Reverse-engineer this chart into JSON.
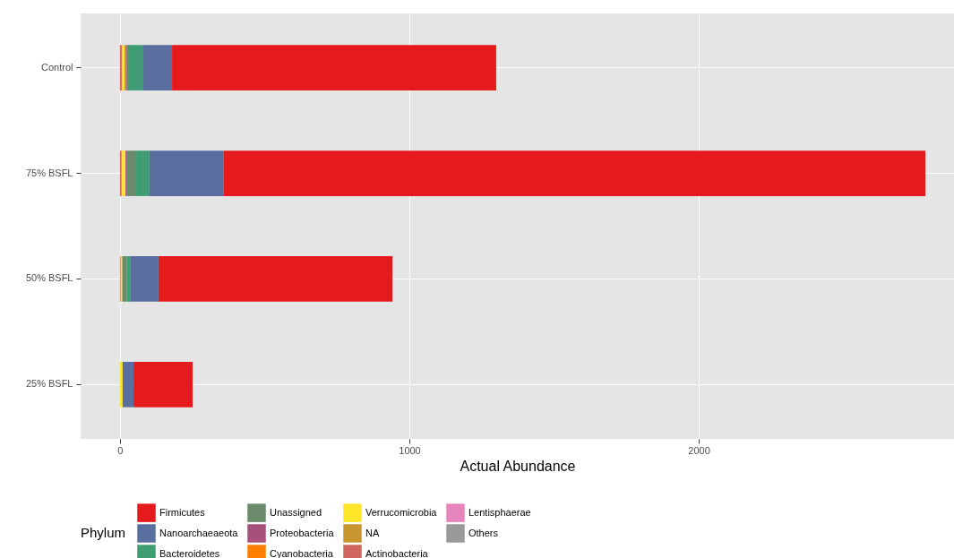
{
  "chart_data": {
    "type": "bar",
    "orientation": "horizontal",
    "stacked": true,
    "xlabel": "Actual Abundance",
    "legend_title": "Phylum",
    "legend": "bottom",
    "grid": true,
    "categories": [
      "Control",
      "75% BSFL",
      "50% BSFL",
      "25% BSFL"
    ],
    "xlim": [
      -136,
      2882
    ],
    "xticks": [
      0,
      1000,
      2000
    ],
    "series": [
      {
        "name": "Others",
        "color": "#999999",
        "values": [
          0,
          0,
          0,
          0
        ]
      },
      {
        "name": "Lentisphaerae",
        "color": "#e585bb",
        "values": [
          0,
          0,
          0,
          0
        ]
      },
      {
        "name": "Actinobacteria",
        "color": "#d0665e",
        "values": [
          6,
          4,
          2,
          0
        ]
      },
      {
        "name": "NA",
        "color": "#c8962e",
        "values": [
          2,
          3,
          2,
          0
        ]
      },
      {
        "name": "Verrucomicrobia",
        "color": "#ffe528",
        "values": [
          8,
          12,
          4,
          9
        ]
      },
      {
        "name": "Cyanobacteria",
        "color": "#ff7f00",
        "values": [
          4,
          0,
          0,
          0
        ]
      },
      {
        "name": "Proteobacteria",
        "color": "#a8507c",
        "values": [
          4,
          3,
          null,
          0
        ]
      },
      {
        "name": "Unassigned",
        "color": "#6b8a6b",
        "values": [
          4,
          34,
          15,
          0
        ]
      },
      {
        "name": "Bacteroidetes",
        "color": "#3f9c73",
        "values": [
          50,
          46,
          12,
          0
        ]
      },
      {
        "name": "Nanoarchaeaeota",
        "color": "#5a6ea0",
        "values": [
          102,
          257,
          98,
          38
        ]
      },
      {
        "name": "Firmicutes",
        "color": "#e41a1c",
        "values": [
          1120,
          2424,
          809,
          204
        ]
      }
    ]
  }
}
